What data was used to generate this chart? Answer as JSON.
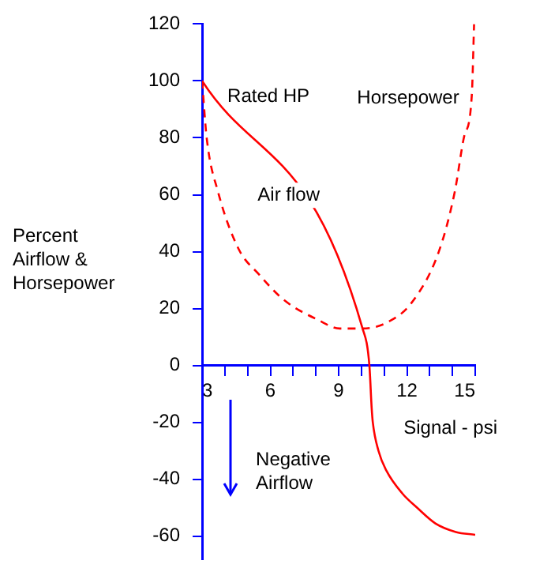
{
  "chart_data": {
    "type": "line",
    "xlabel": "Signal - psi",
    "ylabel": "Percent Airflow & Horsepower",
    "xlim": [
      3,
      15
    ],
    "xticks": [
      3,
      {
        "value": 4,
        "label": null
      },
      {
        "value": 5,
        "label": null
      },
      6,
      {
        "value": 7,
        "label": null
      },
      {
        "value": 8,
        "label": null
      },
      9,
      {
        "value": 10,
        "label": null
      },
      {
        "value": 11,
        "label": null
      },
      12,
      {
        "value": 13,
        "label": null
      },
      {
        "value": 14,
        "label": null
      },
      15
    ],
    "ylim": [
      -68,
      120
    ],
    "yticks": [
      -60,
      -40,
      -20,
      0,
      20,
      40,
      60,
      80,
      100,
      120
    ],
    "grid": false,
    "legend": false,
    "marker": "none",
    "series": [
      {
        "name": "Air flow",
        "color": "#ff0000",
        "line_style": "solid",
        "x": [
          3,
          10.05,
          10.35,
          10.45,
          10.5,
          10.75,
          11.1,
          11.8,
          12.45,
          13.25,
          14.15,
          15
        ],
        "values": [
          100,
          13,
          0,
          -15,
          -20,
          -30,
          -37,
          -45,
          -50,
          -55.5,
          -58.5,
          -59.5
        ]
      },
      {
        "name": "Horsepower",
        "color": "#ff0000",
        "line_style": "dashed",
        "x": [
          3,
          3.2,
          3.7,
          4.6,
          5.5,
          6.6,
          8.1,
          9.05,
          10.05,
          11.1,
          12.2,
          13.4,
          14.1,
          14.5,
          14.85,
          14.95
        ],
        "values": [
          100,
          80,
          61,
          41,
          32,
          23,
          16,
          13,
          13,
          15,
          22,
          40,
          61,
          80,
          95,
          120
        ]
      }
    ],
    "annotations": [
      {
        "text": "Rated HP",
        "x": 3,
        "y": 100
      },
      "Negative Airflow"
    ]
  }
}
